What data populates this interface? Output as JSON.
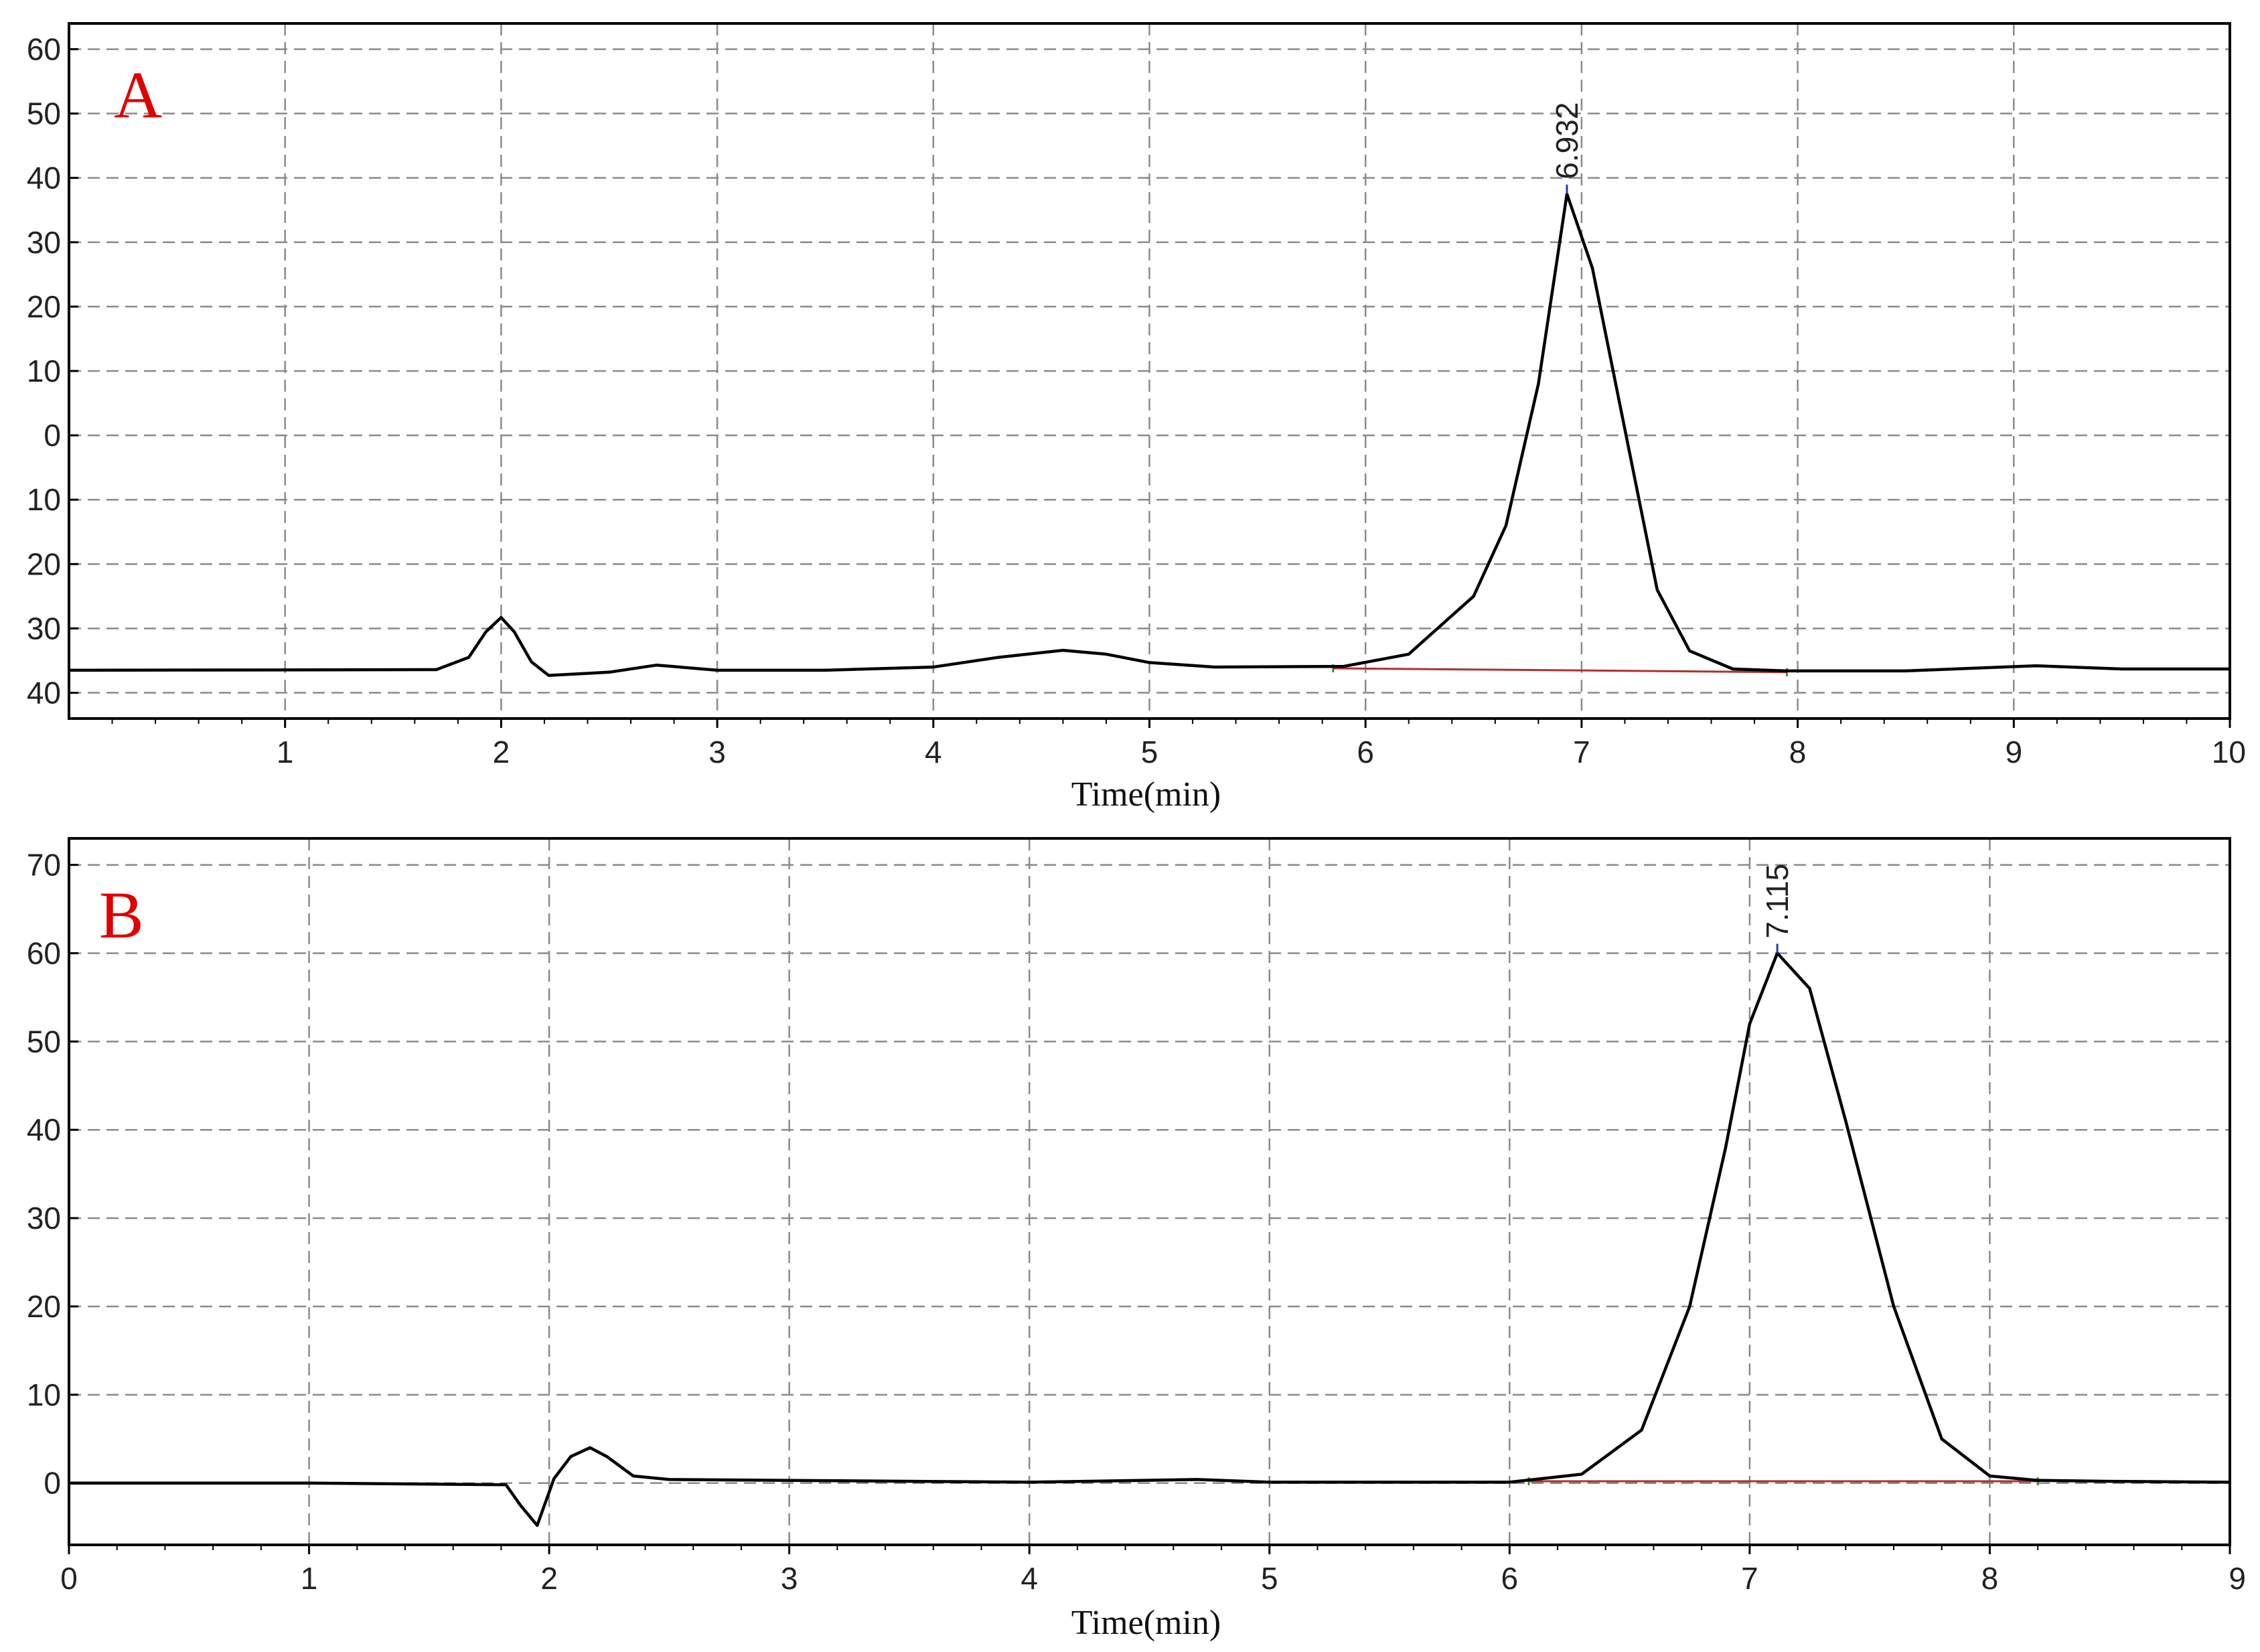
{
  "colors": {
    "trace": "#000000",
    "baseline": "#b03030",
    "panel_label": "#e00000",
    "grid": "#8a8a8a",
    "peak_marker": "#1a3fb0"
  },
  "chart_data": [
    {
      "type": "line",
      "panel_label": "A",
      "xlabel": "Time(min)",
      "ylabel": "",
      "xlim": [
        0,
        10
      ],
      "ylim": [
        -44,
        64
      ],
      "x_ticks": [
        1,
        2,
        3,
        4,
        5,
        6,
        7,
        8,
        9,
        10
      ],
      "x_tick_labels": [
        "1",
        "2",
        "3",
        "4",
        "5",
        "6",
        "7",
        "8",
        "9",
        "10"
      ],
      "y_tick_values": [
        60,
        50,
        40,
        30,
        20,
        10,
        0,
        -10,
        -20,
        -30,
        -40
      ],
      "y_tick_labels": [
        "60",
        "50",
        "40",
        "30",
        "20",
        "10",
        "0",
        "10",
        "20",
        "30",
        "40"
      ],
      "peak_annotation": {
        "label": "6.932",
        "x": 6.932,
        "y": 37.5
      },
      "integration_baseline": {
        "x": [
          5.85,
          7.95
        ],
        "y": [
          -36.2,
          -36.8
        ]
      },
      "series": [
        {
          "x": [
            0,
            1.7,
            1.85,
            1.93,
            2.0,
            2.06,
            2.14,
            2.22,
            2.5,
            2.72,
            3.0,
            3.5,
            4.0,
            4.3,
            4.6,
            4.8,
            5.0,
            5.3,
            5.9,
            6.2,
            6.5,
            6.65,
            6.8,
            6.932,
            7.05,
            7.2,
            7.35,
            7.5,
            7.7,
            7.95,
            8.5,
            9.1,
            9.5,
            10.0
          ],
          "y": [
            -36.5,
            -36.4,
            -34.5,
            -30.5,
            -28.3,
            -30.5,
            -35.2,
            -37.3,
            -36.8,
            -35.7,
            -36.5,
            -36.5,
            -36.0,
            -34.5,
            -33.4,
            -34.0,
            -35.3,
            -36.0,
            -35.9,
            -34.0,
            -25.0,
            -14.0,
            8.0,
            37.5,
            26.0,
            1.0,
            -24.0,
            -33.5,
            -36.3,
            -36.6,
            -36.6,
            -35.8,
            -36.3,
            -36.3
          ]
        }
      ]
    },
    {
      "type": "line",
      "panel_label": "B",
      "xlabel": "Time(min)",
      "ylabel": "",
      "xlim": [
        0,
        9
      ],
      "ylim": [
        -7,
        73
      ],
      "x_ticks": [
        0,
        1,
        2,
        3,
        4,
        5,
        6,
        7,
        8,
        9
      ],
      "x_tick_labels": [
        "0",
        "1",
        "2",
        "3",
        "4",
        "5",
        "6",
        "7",
        "8",
        "9"
      ],
      "y_tick_values": [
        70,
        60,
        50,
        40,
        30,
        20,
        10,
        0
      ],
      "y_tick_labels": [
        "70",
        "60",
        "50",
        "40",
        "30",
        "20",
        "10",
        "0"
      ],
      "peak_annotation": {
        "label": "7.115",
        "x": 7.115,
        "y": 60
      },
      "integration_baseline": {
        "x": [
          6.08,
          8.2
        ],
        "y": [
          0.2,
          0.2
        ]
      },
      "series": [
        {
          "x": [
            0,
            1.0,
            1.82,
            1.88,
            1.95,
            2.02,
            2.09,
            2.17,
            2.24,
            2.35,
            2.5,
            3.0,
            4.0,
            4.7,
            5.0,
            6.0,
            6.3,
            6.55,
            6.75,
            6.9,
            7.0,
            7.115,
            7.25,
            7.4,
            7.6,
            7.8,
            8.0,
            8.2,
            8.5,
            9.0
          ],
          "y": [
            0,
            0,
            -0.2,
            -2.5,
            -4.8,
            0.5,
            3.0,
            4.0,
            3.0,
            0.8,
            0.4,
            0.3,
            0.1,
            0.4,
            0.1,
            0.1,
            1.0,
            6.0,
            20.0,
            38.0,
            52.0,
            60.0,
            56.0,
            41.0,
            20.0,
            5.0,
            0.8,
            0.3,
            0.2,
            0.1
          ]
        }
      ]
    }
  ]
}
